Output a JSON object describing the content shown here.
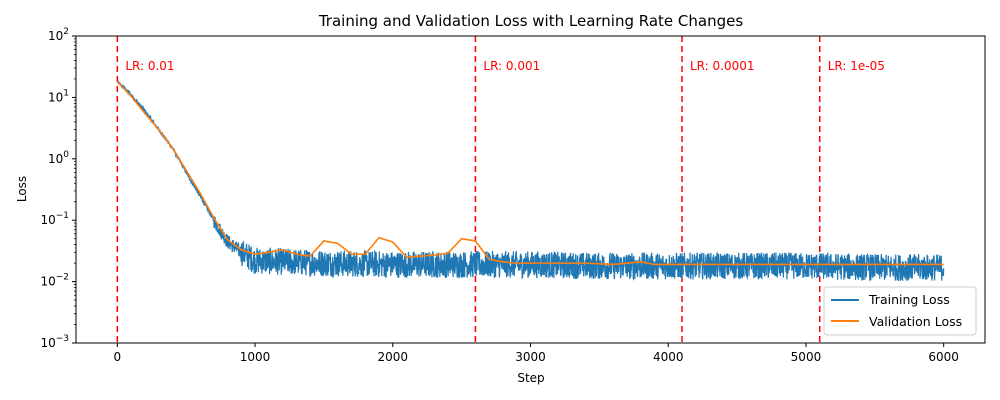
{
  "chart_data": {
    "type": "line",
    "title": "Training and Validation Loss with Learning Rate Changes",
    "xlabel": "Step",
    "ylabel": "Loss",
    "xlim": [
      -300,
      6300
    ],
    "ylim": [
      0.001,
      100
    ],
    "yscale": "log",
    "xticks": [
      0,
      1000,
      2000,
      3000,
      4000,
      5000,
      6000
    ],
    "xtick_labels": [
      "0",
      "1000",
      "2000",
      "3000",
      "4000",
      "5000",
      "6000"
    ],
    "yticks": [
      0.001,
      0.01,
      0.1,
      1,
      10,
      100
    ],
    "ytick_labels": [
      "10^-3",
      "10^-2",
      "10^-1",
      "10^0",
      "10^1",
      "10^2"
    ],
    "legend": {
      "placement": "lower-right",
      "entries": [
        "Training Loss",
        "Validation Loss"
      ]
    },
    "colors": {
      "training": "#1f77b4",
      "validation": "#ff7f0e",
      "lr_line": "#ff0000"
    },
    "lr_changes": [
      {
        "step": 0,
        "label": "LR: 0.01"
      },
      {
        "step": 2600,
        "label": "LR: 0.001"
      },
      {
        "step": 4100,
        "label": "LR: 0.0001"
      },
      {
        "step": 5100,
        "label": "LR: 1e-05"
      }
    ],
    "series": [
      {
        "name": "Training Loss",
        "noise_band": "fluctuates roughly 0.01 to 0.03 after step 900",
        "x": [
          0,
          100,
          200,
          300,
          400,
          500,
          600,
          700,
          800,
          900,
          1000,
          1500,
          2000,
          2500,
          3000,
          3500,
          4000,
          4500,
          5000,
          5500,
          6000
        ],
        "y": [
          18,
          11,
          6,
          3,
          1.5,
          0.6,
          0.25,
          0.1,
          0.045,
          0.03,
          0.022,
          0.02,
          0.019,
          0.019,
          0.019,
          0.018,
          0.018,
          0.018,
          0.018,
          0.017,
          0.017
        ]
      },
      {
        "name": "Validation Loss",
        "x": [
          0,
          100,
          200,
          300,
          400,
          500,
          600,
          700,
          800,
          900,
          1000,
          1100,
          1200,
          1300,
          1400,
          1500,
          1600,
          1700,
          1800,
          1900,
          2000,
          2100,
          2200,
          2300,
          2400,
          2500,
          2600,
          2700,
          2800,
          2900,
          3000,
          3200,
          3400,
          3600,
          3800,
          3900,
          4000,
          4500,
          5000,
          5500,
          6000
        ],
        "y": [
          18,
          10.5,
          5.5,
          3,
          1.5,
          0.65,
          0.28,
          0.11,
          0.048,
          0.033,
          0.028,
          0.03,
          0.033,
          0.028,
          0.026,
          0.046,
          0.042,
          0.028,
          0.028,
          0.052,
          0.044,
          0.025,
          0.026,
          0.027,
          0.029,
          0.05,
          0.046,
          0.023,
          0.021,
          0.02,
          0.02,
          0.02,
          0.02,
          0.019,
          0.021,
          0.019,
          0.019,
          0.019,
          0.019,
          0.019,
          0.019
        ]
      }
    ]
  }
}
